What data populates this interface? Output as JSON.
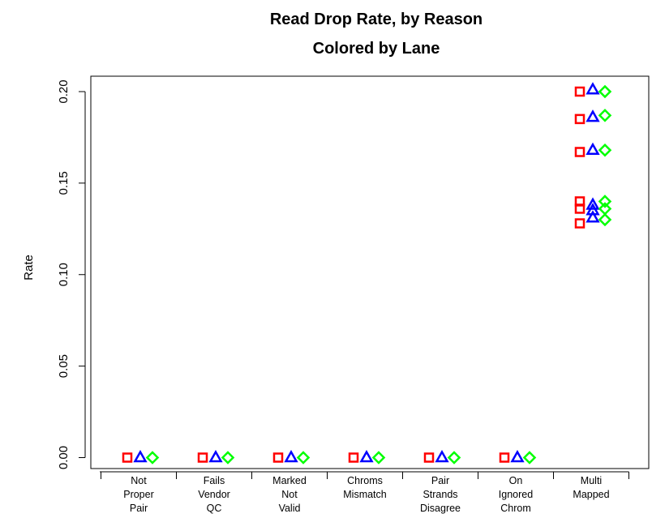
{
  "chart_data": {
    "type": "scatter",
    "title": "Read Drop Rate, by Reason",
    "subtitle": "Colored by Lane",
    "xlabel": "",
    "ylabel": "Rate",
    "ylim": [
      0,
      0.2
    ],
    "yticks": [
      "0.00",
      "0.05",
      "0.10",
      "0.15",
      "0.20"
    ],
    "categories": [
      [
        "Not",
        "Proper",
        "Pair"
      ],
      [
        "Fails",
        "Vendor",
        "QC"
      ],
      [
        "Marked",
        "Not",
        "Valid"
      ],
      [
        "Chroms",
        "Mismatch"
      ],
      [
        "Pair",
        "Strands",
        "Disagree"
      ],
      [
        "On",
        "Ignored",
        "Chrom"
      ],
      [
        "Multi",
        "Mapped"
      ]
    ],
    "grid": false,
    "legend": "none",
    "series": [
      {
        "marker": "square",
        "color": "#ff0000",
        "values": [
          [
            0
          ],
          [
            0
          ],
          [
            0
          ],
          [
            0
          ],
          [
            0
          ],
          [
            0
          ],
          [
            0.2,
            0.185,
            0.167,
            0.14,
            0.136,
            0.128
          ]
        ]
      },
      {
        "marker": "triangle",
        "color": "#0000ff",
        "values": [
          [
            0
          ],
          [
            0
          ],
          [
            0
          ],
          [
            0
          ],
          [
            0
          ],
          [
            0
          ],
          [
            0.201,
            0.186,
            0.168,
            0.138,
            0.135,
            0.131
          ]
        ]
      },
      {
        "marker": "diamond",
        "color": "#00ff00",
        "values": [
          [
            0
          ],
          [
            0
          ],
          [
            0
          ],
          [
            0
          ],
          [
            0
          ],
          [
            0
          ],
          [
            0.2,
            0.187,
            0.168,
            0.14,
            0.136,
            0.13
          ]
        ]
      }
    ]
  }
}
